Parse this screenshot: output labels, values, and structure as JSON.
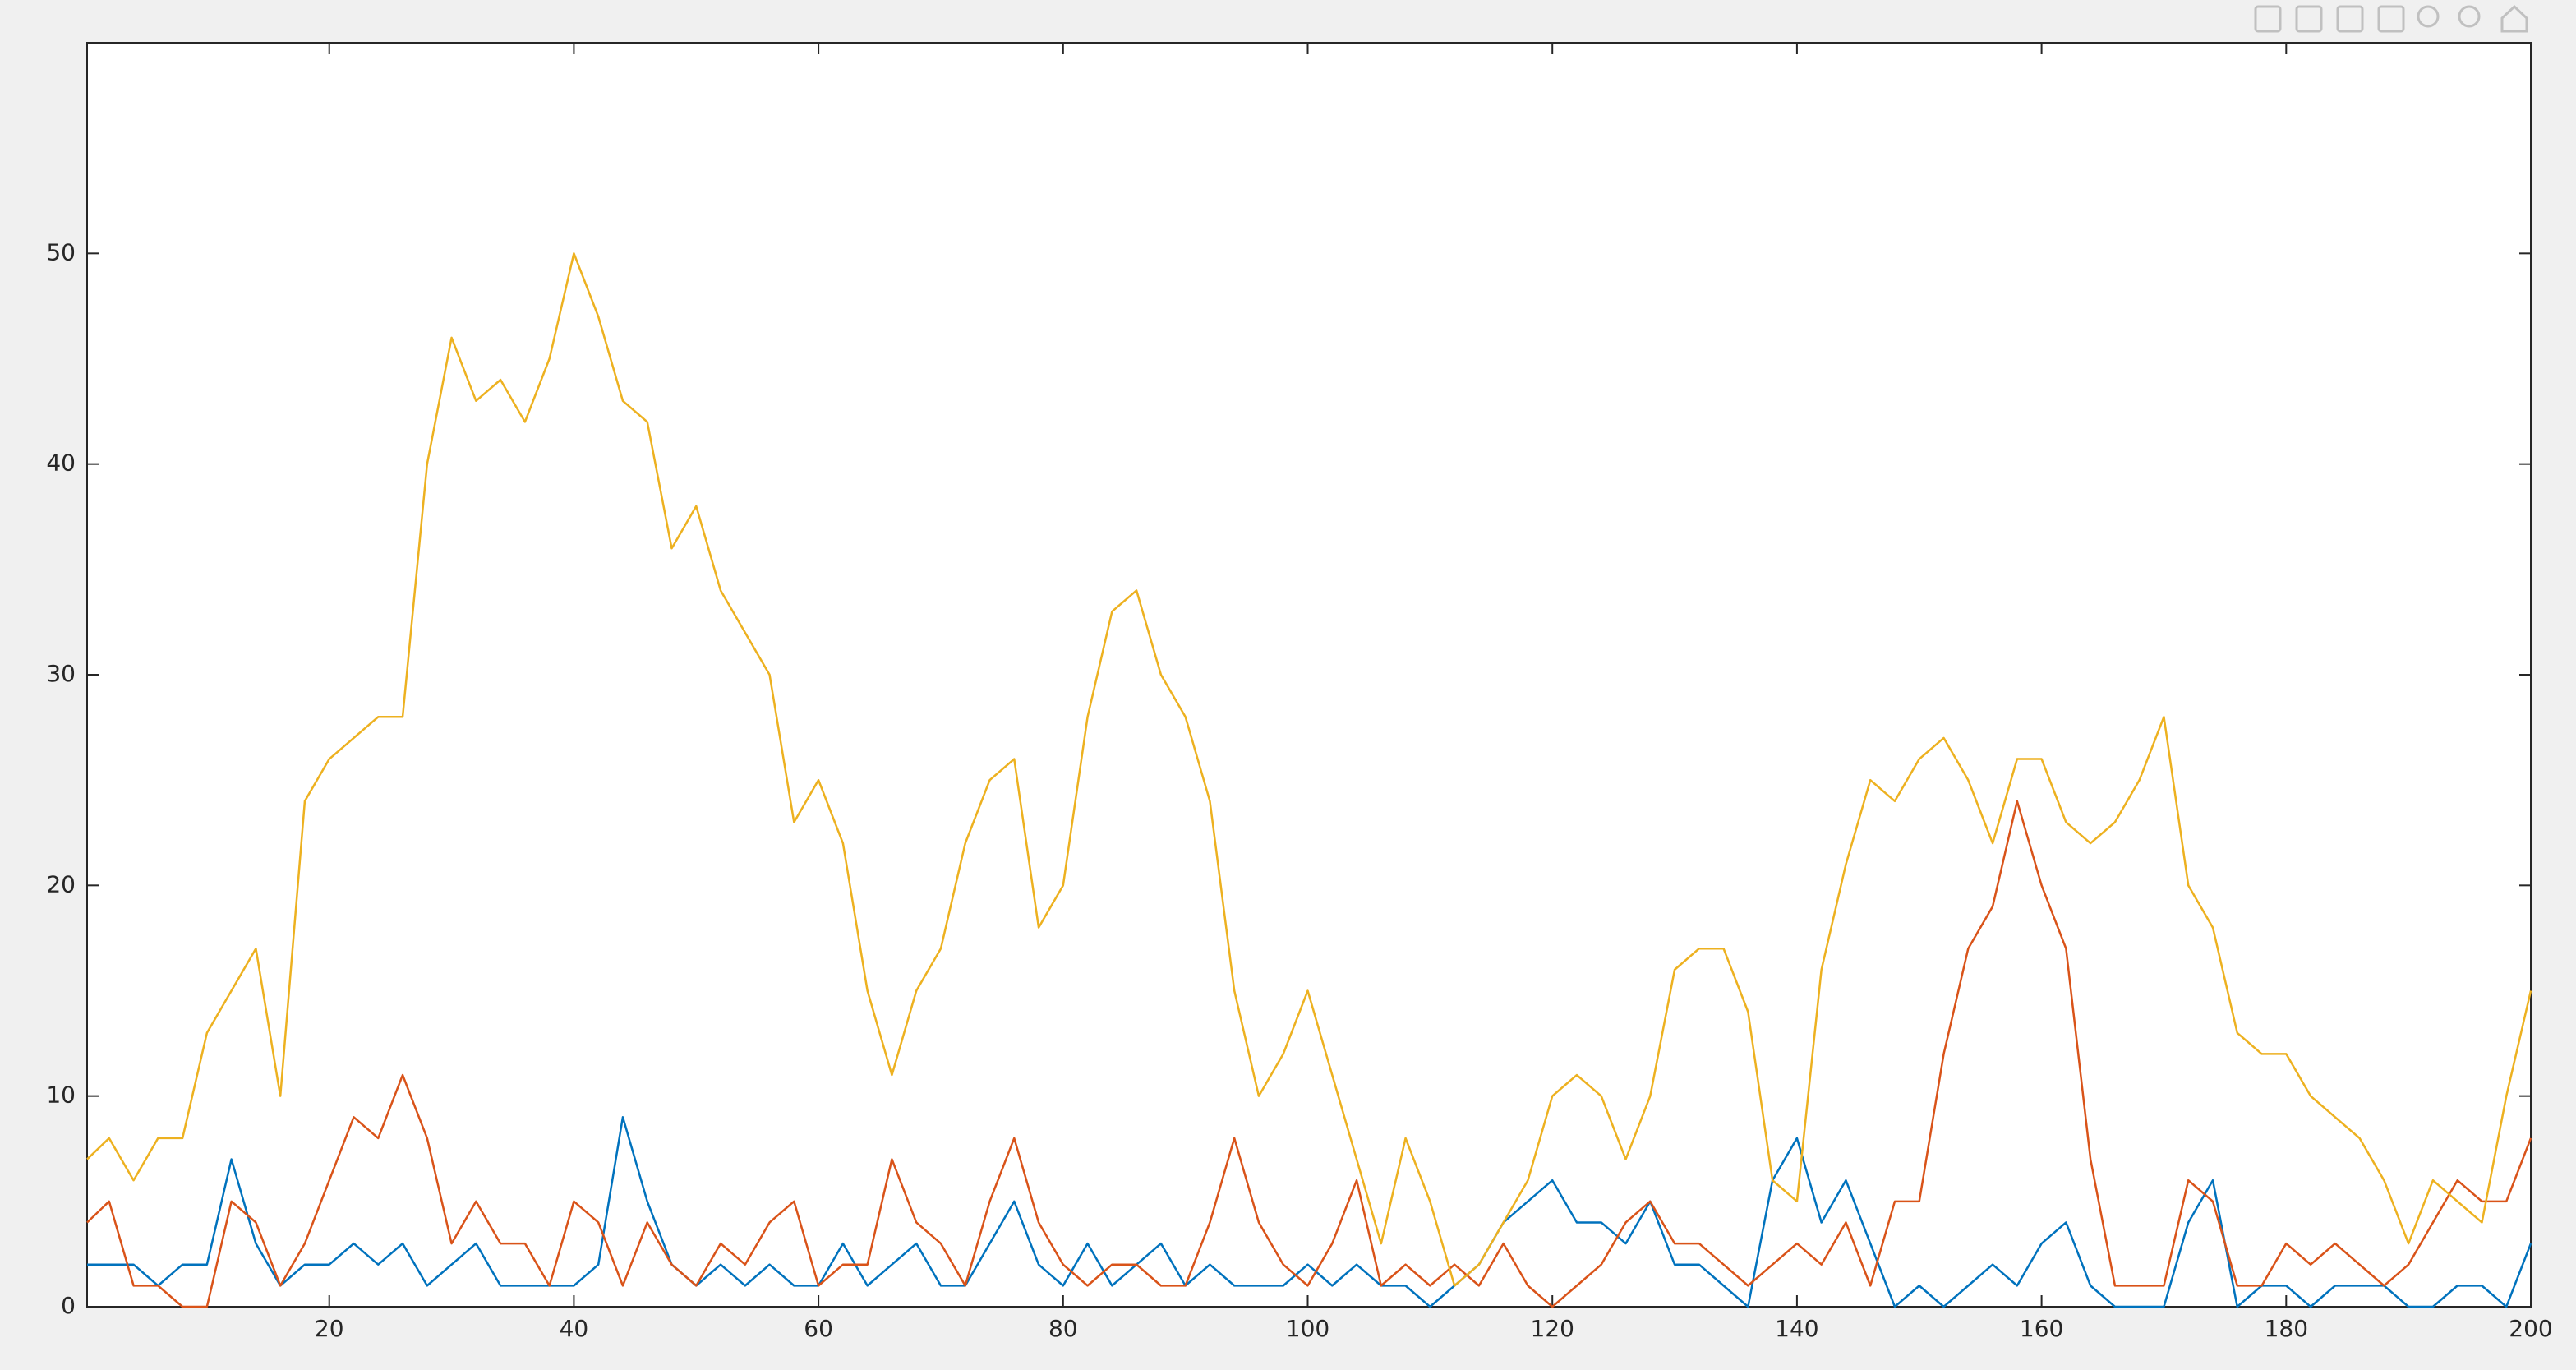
{
  "chart_data": {
    "type": "line",
    "x": [
      0.2,
      2,
      4,
      6,
      8,
      10,
      12,
      14,
      16,
      18,
      20,
      22,
      24,
      26,
      28,
      30,
      32,
      34,
      36,
      38,
      40,
      42,
      44,
      46,
      48,
      50,
      52,
      54,
      56,
      58,
      60,
      62,
      64,
      66,
      68,
      70,
      72,
      74,
      76,
      78,
      80,
      82,
      84,
      86,
      88,
      90,
      92,
      94,
      96,
      98,
      100,
      102,
      104,
      106,
      108,
      110,
      112,
      114,
      116,
      118,
      120,
      122,
      124,
      126,
      128,
      130,
      132,
      134,
      136,
      138,
      140,
      142,
      144,
      146,
      148,
      150,
      152,
      154,
      156,
      158,
      160,
      162,
      164,
      166,
      168,
      170,
      172,
      174,
      176,
      178,
      180,
      182,
      184,
      186,
      188,
      190,
      192,
      194,
      196,
      198,
      200
    ],
    "series": [
      {
        "color": "#0072BD",
        "values": [
          2,
          2,
          2,
          1,
          2,
          2,
          7,
          3,
          1,
          2,
          2,
          3,
          2,
          3,
          1,
          2,
          3,
          1,
          1,
          1,
          1,
          2,
          9,
          5,
          2,
          1,
          2,
          1,
          2,
          1,
          1,
          3,
          1,
          2,
          3,
          1,
          1,
          3,
          5,
          2,
          1,
          3,
          1,
          2,
          3,
          1,
          2,
          1,
          1,
          1,
          2,
          1,
          2,
          1,
          1,
          0,
          1,
          2,
          4,
          5,
          6,
          4,
          4,
          3,
          5,
          2,
          2,
          1,
          0,
          6,
          8,
          4,
          6,
          3,
          0,
          1,
          0,
          1,
          2,
          1,
          3,
          4,
          1,
          0,
          0,
          0,
          4,
          6,
          0,
          1,
          1,
          0,
          1,
          1,
          1,
          0,
          0,
          1,
          1,
          0,
          3
        ]
      },
      {
        "color": "#D95319",
        "values": [
          4,
          5,
          1,
          1,
          0,
          0,
          5,
          4,
          1,
          3,
          6,
          9,
          8,
          11,
          8,
          3,
          5,
          3,
          3,
          1,
          5,
          4,
          1,
          4,
          2,
          1,
          3,
          2,
          4,
          5,
          1,
          2,
          2,
          7,
          4,
          3,
          1,
          5,
          8,
          4,
          2,
          1,
          2,
          2,
          1,
          1,
          4,
          8,
          4,
          2,
          1,
          3,
          6,
          1,
          2,
          1,
          2,
          1,
          3,
          1,
          0,
          1,
          2,
          4,
          5,
          3,
          3,
          2,
          1,
          2,
          3,
          2,
          4,
          1,
          5,
          5,
          12,
          17,
          19,
          24,
          20,
          17,
          7,
          1,
          1,
          1,
          6,
          5,
          1,
          1,
          3,
          2,
          3,
          2,
          1,
          2,
          4,
          6,
          5,
          5,
          8
        ]
      },
      {
        "color": "#EDB120",
        "values": [
          7,
          8,
          6,
          8,
          8,
          13,
          15,
          17,
          10,
          24,
          26,
          27,
          28,
          28,
          40,
          46,
          43,
          44,
          42,
          45,
          50,
          47,
          43,
          42,
          36,
          38,
          34,
          32,
          30,
          23,
          25,
          22,
          15,
          11,
          15,
          17,
          22,
          25,
          26,
          18,
          20,
          28,
          33,
          34,
          30,
          28,
          24,
          15,
          10,
          12,
          15,
          11,
          7,
          3,
          8,
          5,
          1,
          2,
          4,
          6,
          10,
          11,
          10,
          7,
          10,
          16,
          17,
          17,
          14,
          6,
          5,
          16,
          21,
          25,
          24,
          26,
          27,
          25,
          22,
          26,
          26,
          23,
          22,
          23,
          25,
          28,
          20,
          18,
          13,
          12,
          12,
          10,
          9,
          8,
          6,
          3,
          6,
          5,
          4,
          10,
          15
        ]
      }
    ],
    "xlim": [
      0.2,
      200
    ],
    "ylim": [
      0,
      60
    ],
    "xticks": [
      20,
      40,
      60,
      80,
      100,
      120,
      140,
      160,
      180,
      200
    ],
    "yticks": [
      0,
      10,
      20,
      30,
      40,
      50
    ]
  }
}
